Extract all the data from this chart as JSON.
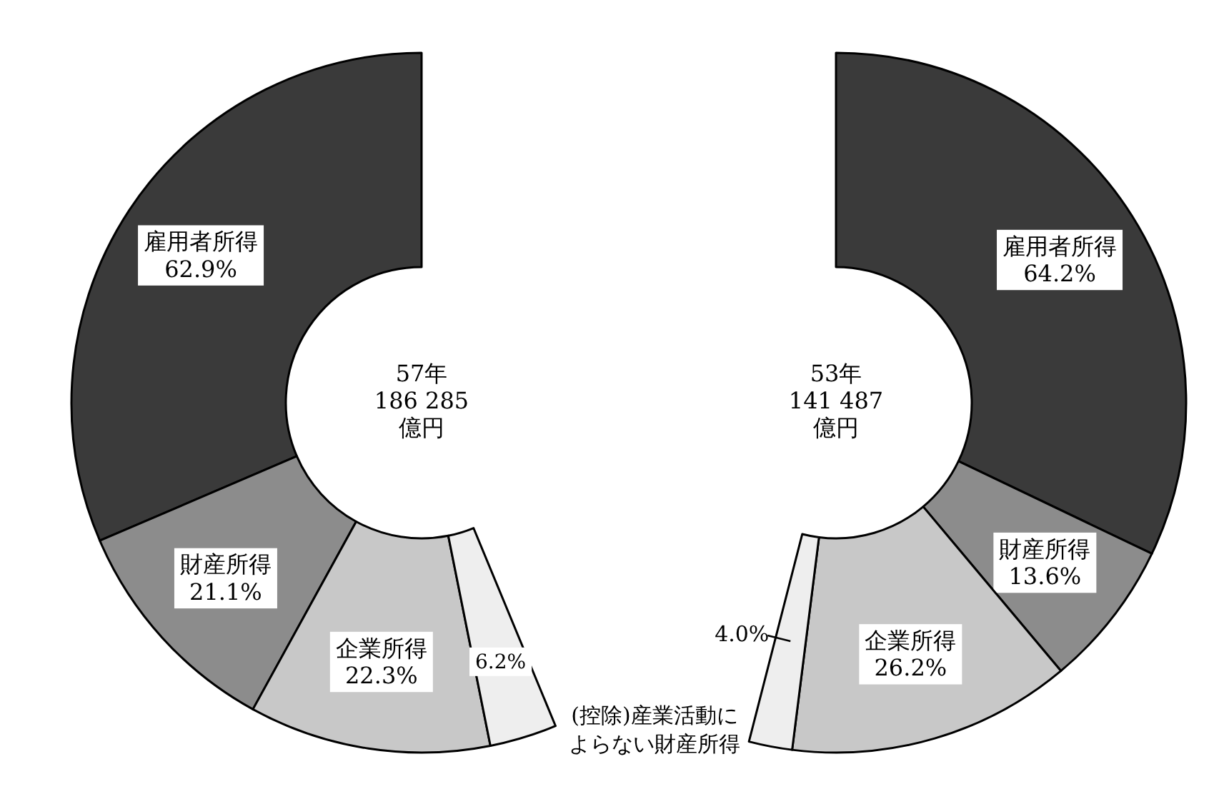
{
  "chart_data": [
    {
      "type": "donut",
      "title": "57年\n186 285\n億円",
      "categories": [
        "雇用者所得",
        "財産所得",
        "企業所得",
        null
      ],
      "values": [
        62.9,
        21.1,
        22.3,
        6.2
      ],
      "value_labels": [
        "62.9%",
        "21.1%",
        "22.3%",
        "6.2%"
      ],
      "colors": [
        "#3a3a3a",
        "#8c8c8c",
        "#c8c8c8",
        "#eeeeee"
      ],
      "annotations": [
        "(控除)産業活動に",
        "よらない財産所得"
      ]
    },
    {
      "type": "donut",
      "title": "53年\n141 487\n億円",
      "categories": [
        "雇用者所得",
        "財産所得",
        "企業所得",
        null
      ],
      "values": [
        64.2,
        13.6,
        26.2,
        4.0
      ],
      "value_labels": [
        "64.2%",
        "13.6%",
        "26.2%",
        "4.0%"
      ],
      "colors": [
        "#3a3a3a",
        "#8c8c8c",
        "#c8c8c8",
        "#eeeeee"
      ]
    }
  ]
}
